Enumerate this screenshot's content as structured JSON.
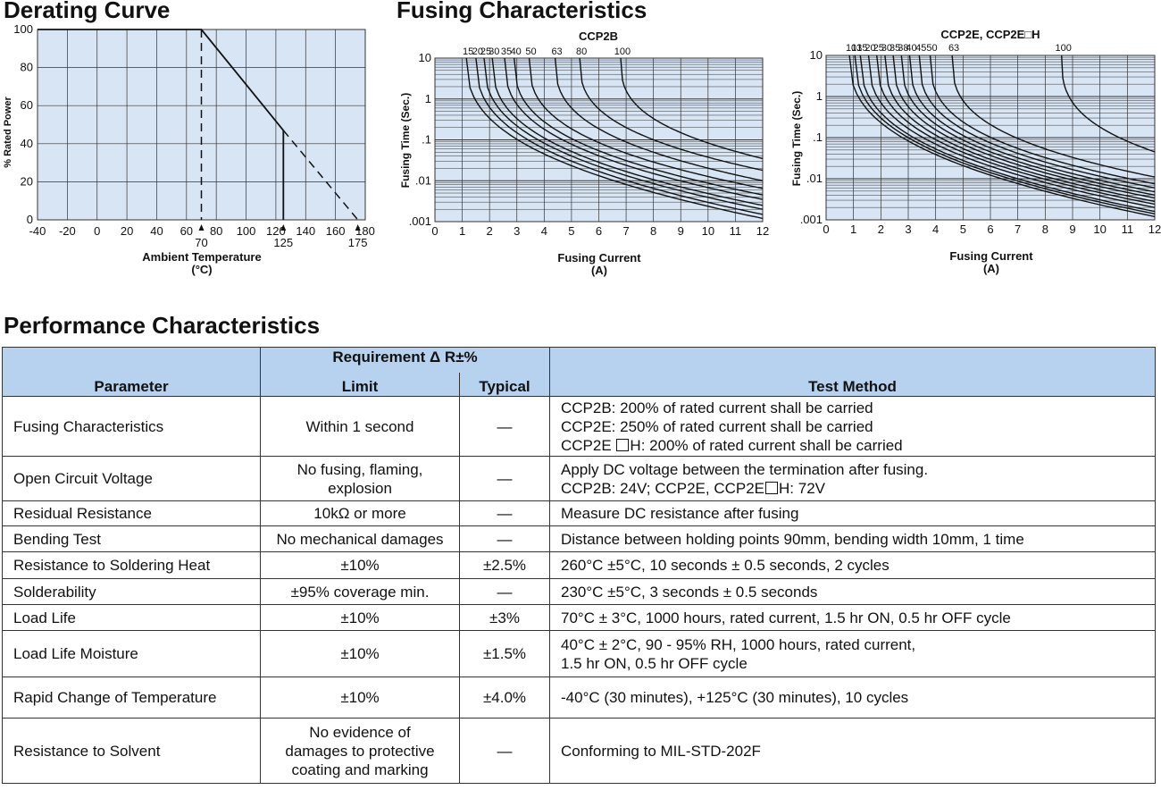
{
  "derating": {
    "title": "Derating Curve",
    "ylabel": "% Rated Power",
    "xlabel_line1": "Ambient Temperature",
    "xlabel_line2": "(°C)",
    "x_ticks": [
      "-40",
      "-20",
      "0",
      "20",
      "40",
      "60",
      "80",
      "100",
      "120",
      "140",
      "160",
      "180"
    ],
    "y_ticks": [
      "0",
      "20",
      "40",
      "60",
      "80",
      "100"
    ],
    "markers": [
      "70",
      "125",
      "175"
    ]
  },
  "fusing_title": "Fusing Characteristics",
  "performance_title": "Performance Characteristics",
  "chart_data": [
    {
      "type": "line",
      "xlabel": "Ambient Temperature (°C)",
      "ylabel": "% Rated Power",
      "xlim": [
        -40,
        180
      ],
      "ylim": [
        0,
        100
      ],
      "grid": true,
      "series": [
        {
          "points": [
            [
              -40,
              100
            ],
            [
              70,
              100
            ],
            [
              125,
              47
            ]
          ]
        },
        {
          "points": [
            [
              125,
              47
            ],
            [
              175,
              0
            ]
          ]
        },
        {
          "points": [
            [
              70,
              100
            ],
            [
              70,
              0
            ]
          ]
        },
        {
          "points": [
            [
              125,
              47
            ],
            [
              125,
              0
            ]
          ]
        }
      ],
      "annotations": [
        "70",
        "125",
        "175"
      ]
    },
    {
      "type": "line",
      "title": "CCP2B",
      "xlabel": "Fusing Current (A)",
      "ylabel": "Fusing Time (Sec.)",
      "xlim": [
        0,
        12
      ],
      "ylim": [
        0.001,
        10
      ],
      "yscale": "log",
      "grid": true,
      "x_ticks": [
        "0",
        "1",
        "2",
        "3",
        "4",
        "5",
        "6",
        "7",
        "8",
        "9",
        "10",
        "11",
        "12"
      ],
      "y_ticks": [
        "10",
        "1",
        ".1",
        ".01",
        ".001"
      ],
      "curve_labels": [
        "15",
        "20",
        "25",
        "30",
        "35",
        "40",
        "50",
        "63",
        "80",
        "100"
      ],
      "curve_top_x": [
        1.15,
        1.5,
        1.8,
        2.1,
        2.55,
        2.9,
        3.45,
        4.4,
        5.3,
        6.8
      ],
      "curve_right_y": [
        0.0012,
        0.0015,
        0.002,
        0.0025,
        0.0035,
        0.0045,
        0.0065,
        0.01,
        0.018,
        0.035
      ]
    },
    {
      "type": "line",
      "title": "CCP2E, CCP2E□H",
      "xlabel": "Fusing Current (A)",
      "ylabel": "Fusing Time (Sec.)",
      "xlim": [
        0,
        12
      ],
      "ylim": [
        0.001,
        10
      ],
      "yscale": "log",
      "grid": true,
      "x_ticks": [
        "0",
        "1",
        "2",
        "3",
        "4",
        "5",
        "6",
        "7",
        "8",
        "9",
        "10",
        "11",
        "12"
      ],
      "y_ticks": [
        "10",
        "1",
        ".1",
        ".01",
        ".001"
      ],
      "curve_labels": [
        "10",
        "13",
        "15",
        "20",
        "25",
        "30",
        "35",
        "38",
        "40",
        "45",
        "50",
        "63",
        "100"
      ],
      "curve_top_x": [
        0.85,
        1.05,
        1.25,
        1.55,
        1.85,
        2.15,
        2.45,
        2.75,
        3.05,
        3.4,
        3.8,
        4.6,
        8.6
      ],
      "curve_right_y": [
        0.0012,
        0.0014,
        0.0016,
        0.002,
        0.0024,
        0.0028,
        0.0034,
        0.004,
        0.0048,
        0.006,
        0.0075,
        0.011,
        0.045
      ]
    }
  ],
  "table": {
    "header_requirement": "Requirement Δ R±%",
    "col_parameter": "Parameter",
    "col_limit": "Limit",
    "col_typical": "Typical",
    "col_method": "Test Method",
    "rows": [
      {
        "param": "Fusing Characteristics",
        "limit": "Within 1 second",
        "typical": "—",
        "m1": "CCP2B: 200% of rated current shall be carried",
        "m2": "CCP2E: 250% of rated current shall be carried",
        "m3a": "CCP2E",
        "m3b": "H: 200% of rated current shall be carried"
      },
      {
        "param": "Open Circuit Voltage",
        "limit1": "No fusing, flaming,",
        "limit2": "explosion",
        "typical": "—",
        "m1": "Apply DC voltage between the termination after fusing.",
        "m2a": "CCP2B: 24V; CCP2E, CCP2E",
        "m2b": "H: 72V"
      },
      {
        "param": "Residual Resistance",
        "limit": "10kΩ or more",
        "typical": "—",
        "m1": "Measure DC resistance after fusing"
      },
      {
        "param": "Bending Test",
        "limit": "No mechanical damages",
        "typical": "—",
        "m1": "Distance between holding points 90mm, bending width 10mm, 1 time"
      },
      {
        "param": "Resistance to Soldering Heat",
        "limit": "±10%",
        "typical": "±2.5%",
        "m1": "260°C ±5°C, 10 seconds ± 0.5 seconds, 2 cycles"
      },
      {
        "param": "Solderability",
        "limit": "±95% coverage min.",
        "typical": "—",
        "m1": "230°C ±5°C, 3 seconds ± 0.5 seconds"
      },
      {
        "param": "Load Life",
        "limit": "±10%",
        "typical": "±3%",
        "m1": "70°C ± 3°C, 1000 hours, rated current, 1.5 hr ON, 0.5 hr OFF cycle"
      },
      {
        "param": "Load Life Moisture",
        "limit": "±10%",
        "typical": "±1.5%",
        "m1": "40°C ± 2°C, 90 - 95% RH, 1000 hours, rated current,",
        "m2": "1.5 hr ON, 0.5 hr OFF cycle"
      },
      {
        "param": "Rapid Change of Temperature",
        "limit": "±10%",
        "typical": "±4.0%",
        "m1": "-40°C (30 minutes), +125°C (30 minutes), 10 cycles"
      },
      {
        "param": "Resistance to Solvent",
        "limit1": "No evidence of",
        "limit2": "damages to protective",
        "limit3": "coating and marking",
        "typical": "—",
        "m1": "Conforming to MIL-STD-202F"
      }
    ]
  }
}
